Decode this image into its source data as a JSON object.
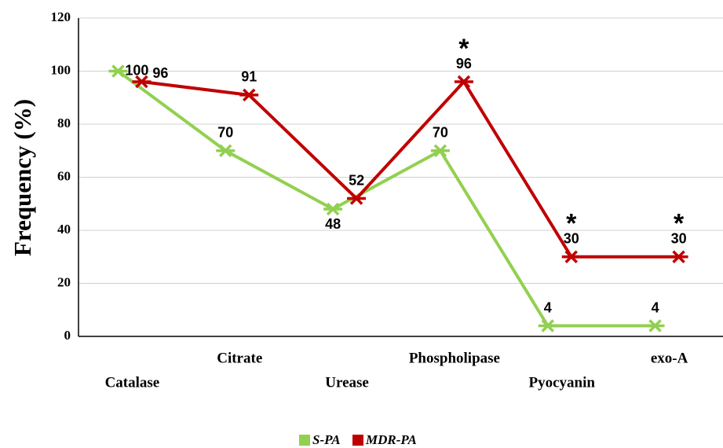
{
  "chart_data": {
    "type": "line",
    "categories": [
      "Catalase",
      "Citrate",
      "Urease",
      "Phospholipase",
      "Pyocyanin",
      "exo-A"
    ],
    "series": [
      {
        "name": "S-PA",
        "color": "#92d050",
        "values": [
          100,
          70,
          48,
          70,
          4,
          4
        ]
      },
      {
        "name": "MDR-PA",
        "color": "#c00000",
        "values": [
          96,
          91,
          52,
          96,
          30,
          30
        ]
      }
    ],
    "ylabel": "Frequency (%)",
    "ylim": [
      0,
      120
    ],
    "yticks": [
      0,
      20,
      40,
      60,
      80,
      100,
      120
    ],
    "grid": true,
    "legend": "bottom",
    "annotations": [
      {
        "text": "*",
        "category": "Phospholipase",
        "series": "MDR-PA"
      },
      {
        "text": "*",
        "category": "Pyocyanin",
        "series": "MDR-PA"
      },
      {
        "text": "*",
        "category": "exo-A",
        "series": "MDR-PA"
      }
    ]
  }
}
